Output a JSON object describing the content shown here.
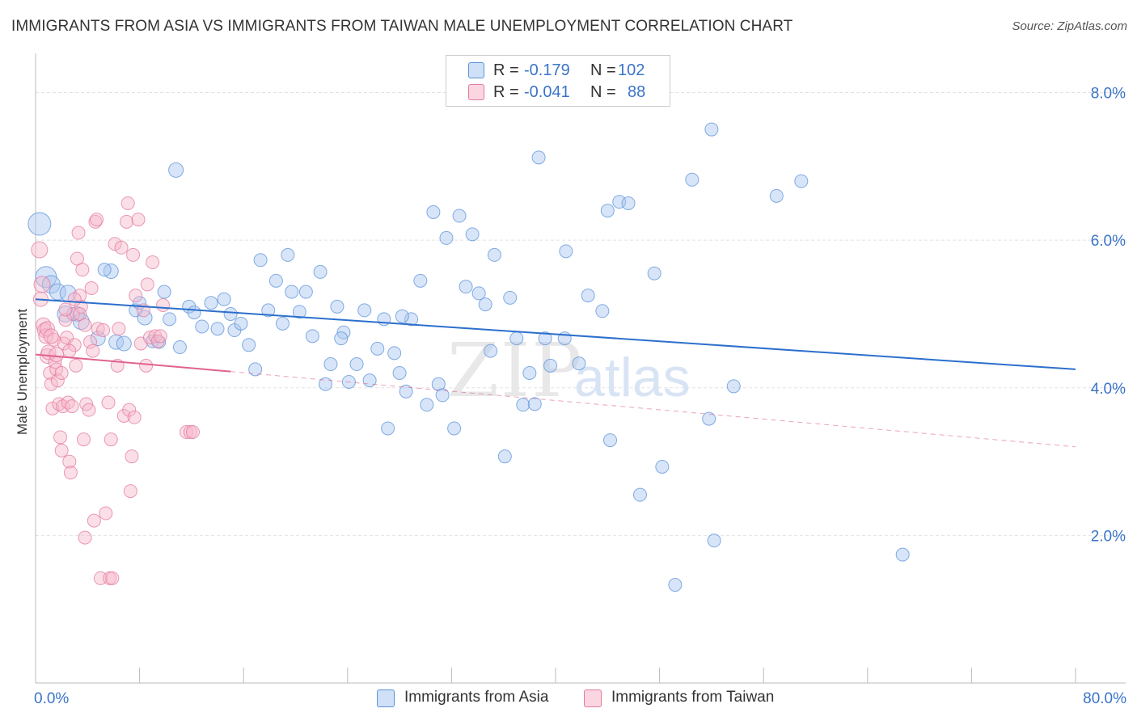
{
  "title": "IMMIGRANTS FROM ASIA VS IMMIGRANTS FROM TAIWAN MALE UNEMPLOYMENT CORRELATION CHART",
  "source": "Source: ZipAtlas.com",
  "watermark": {
    "zip": "ZIP",
    "atlas": "atlas"
  },
  "legend_top": {
    "rows": [
      {
        "r_label": "R =",
        "r_value": "-0.179",
        "n_label": "N =",
        "n_value": "102",
        "color": "#a8c6f0"
      },
      {
        "r_label": "R =",
        "r_value": "-0.041",
        "n_label": "N =",
        "n_value": "88",
        "color": "#f6b8ca"
      }
    ]
  },
  "legend_bottom": [
    {
      "label": "Immigrants from Asia",
      "color": "#a8c6f0"
    },
    {
      "label": "Immigrants from Taiwan",
      "color": "#f6b8ca"
    }
  ],
  "chart_data": {
    "type": "scatter",
    "title": "IMMIGRANTS FROM ASIA VS IMMIGRANTS FROM TAIWAN MALE UNEMPLOYMENT CORRELATION CHART",
    "xlabel": "",
    "ylabel": "Male Unemployment",
    "xlim": [
      0,
      80
    ],
    "ylim": [
      0,
      8.4
    ],
    "x_tick_labels": [
      "0.0%",
      "80.0%"
    ],
    "y_ticks": [
      2,
      4,
      6,
      8
    ],
    "y_tick_labels": [
      "2.0%",
      "4.0%",
      "6.0%",
      "8.0%"
    ],
    "grid": true,
    "legend_placement": "top-center and bottom",
    "series": [
      {
        "name": "Immigrants from Asia",
        "color": "#5b93d9",
        "fill": "#a8c6f0",
        "trend": {
          "x": [
            0,
            80
          ],
          "y": [
            5.2,
            4.25
          ],
          "style": "solid",
          "color": "#2c6fcc"
        },
        "points": [
          [
            0.3,
            6.22,
            14
          ],
          [
            0.8,
            5.5,
            13
          ],
          [
            1.2,
            5.4,
            11
          ],
          [
            1.7,
            5.3,
            10
          ],
          [
            2.5,
            5.28,
            10
          ],
          [
            2.3,
            5.0,
            10
          ],
          [
            3.2,
            5.0,
            9
          ],
          [
            3.5,
            4.9,
            10
          ],
          [
            4.8,
            4.67,
            9
          ],
          [
            5.8,
            5.58,
            9
          ],
          [
            5.3,
            5.6,
            8
          ],
          [
            6.2,
            4.62,
            9
          ],
          [
            6.8,
            4.6,
            9
          ],
          [
            7.7,
            5.05,
            8
          ],
          [
            8.0,
            5.15,
            8
          ],
          [
            8.4,
            4.95,
            9
          ],
          [
            9.0,
            4.63,
            8
          ],
          [
            9.5,
            4.62,
            8
          ],
          [
            9.9,
            5.3,
            8
          ],
          [
            10.3,
            4.93,
            8
          ],
          [
            11.1,
            4.55,
            8
          ],
          [
            10.8,
            6.95,
            9
          ],
          [
            11.8,
            5.1,
            8
          ],
          [
            12.2,
            5.02,
            8
          ],
          [
            12.8,
            4.83,
            8
          ],
          [
            13.5,
            5.15,
            8
          ],
          [
            14.0,
            4.8,
            8
          ],
          [
            14.5,
            5.2,
            8
          ],
          [
            15.0,
            5.0,
            8
          ],
          [
            15.3,
            4.78,
            8
          ],
          [
            15.8,
            4.87,
            8
          ],
          [
            16.4,
            4.58,
            8
          ],
          [
            16.9,
            4.25,
            8
          ],
          [
            17.3,
            5.73,
            8
          ],
          [
            17.9,
            5.05,
            8
          ],
          [
            18.5,
            5.45,
            8
          ],
          [
            19.0,
            4.87,
            8
          ],
          [
            19.4,
            5.8,
            8
          ],
          [
            19.7,
            5.3,
            8
          ],
          [
            20.3,
            5.03,
            8
          ],
          [
            20.8,
            5.3,
            8
          ],
          [
            21.3,
            4.7,
            8
          ],
          [
            21.9,
            5.57,
            8
          ],
          [
            22.3,
            4.05,
            8
          ],
          [
            22.7,
            4.32,
            8
          ],
          [
            23.2,
            5.1,
            8
          ],
          [
            23.7,
            4.75,
            8
          ],
          [
            24.1,
            4.08,
            8
          ],
          [
            24.7,
            4.32,
            8
          ],
          [
            25.3,
            5.05,
            8
          ],
          [
            25.7,
            4.1,
            8
          ],
          [
            26.3,
            4.53,
            8
          ],
          [
            26.8,
            4.93,
            8
          ],
          [
            27.1,
            3.45,
            8
          ],
          [
            27.6,
            4.47,
            8
          ],
          [
            28.0,
            4.2,
            8
          ],
          [
            28.5,
            3.95,
            8
          ],
          [
            28.9,
            4.93,
            8
          ],
          [
            29.6,
            5.45,
            8
          ],
          [
            30.1,
            3.77,
            8
          ],
          [
            30.6,
            6.38,
            8
          ],
          [
            31.0,
            4.05,
            8
          ],
          [
            31.3,
            3.9,
            8
          ],
          [
            31.6,
            6.03,
            8
          ],
          [
            32.2,
            3.45,
            8
          ],
          [
            32.6,
            6.33,
            8
          ],
          [
            33.1,
            5.37,
            8
          ],
          [
            33.6,
            6.08,
            8
          ],
          [
            34.1,
            5.28,
            8
          ],
          [
            34.6,
            5.13,
            8
          ],
          [
            35.0,
            4.5,
            8
          ],
          [
            35.3,
            5.8,
            8
          ],
          [
            36.1,
            3.07,
            8
          ],
          [
            36.5,
            5.22,
            8
          ],
          [
            37.0,
            4.67,
            8
          ],
          [
            37.5,
            3.77,
            8
          ],
          [
            38.0,
            4.2,
            8
          ],
          [
            38.7,
            7.12,
            8
          ],
          [
            39.2,
            4.67,
            8
          ],
          [
            39.6,
            4.3,
            8
          ],
          [
            40.8,
            5.85,
            8
          ],
          [
            41.8,
            4.33,
            8
          ],
          [
            42.5,
            5.25,
            8
          ],
          [
            43.6,
            5.04,
            8
          ],
          [
            44.0,
            6.4,
            8
          ],
          [
            44.2,
            3.29,
            8
          ],
          [
            44.9,
            6.52,
            8
          ],
          [
            45.6,
            6.5,
            8
          ],
          [
            46.5,
            2.55,
            8
          ],
          [
            47.6,
            5.55,
            8
          ],
          [
            48.2,
            2.93,
            8
          ],
          [
            49.2,
            1.33,
            8
          ],
          [
            50.5,
            6.82,
            8
          ],
          [
            51.8,
            3.58,
            8
          ],
          [
            52.0,
            7.5,
            8
          ],
          [
            52.2,
            1.93,
            8
          ],
          [
            53.7,
            4.02,
            8
          ],
          [
            57.0,
            6.6,
            8
          ],
          [
            58.9,
            6.8,
            8
          ],
          [
            66.7,
            1.74,
            8
          ],
          [
            40.7,
            4.67,
            8
          ],
          [
            28.2,
            4.97,
            8
          ],
          [
            23.5,
            4.67,
            8
          ],
          [
            38.4,
            3.78,
            8
          ]
        ]
      },
      {
        "name": "Immigrants from Taiwan",
        "color": "#e27aa0",
        "fill": "#f6b8ca",
        "trend": {
          "x": [
            0,
            15
          ],
          "y": [
            4.45,
            4.22
          ],
          "style": "solid",
          "x_dashed_to": 80,
          "y_dashed_to": 3.2,
          "color": "#e0628f"
        },
        "points": [
          [
            0.3,
            5.87,
            10
          ],
          [
            0.4,
            5.2,
            9
          ],
          [
            0.6,
            4.85,
            9
          ],
          [
            0.7,
            4.78,
            9
          ],
          [
            0.8,
            4.7,
            9
          ],
          [
            0.9,
            4.43,
            9
          ],
          [
            1.0,
            4.48,
            9
          ],
          [
            1.1,
            4.2,
            8
          ],
          [
            1.2,
            4.05,
            8
          ],
          [
            1.3,
            3.72,
            8
          ],
          [
            1.4,
            4.65,
            8
          ],
          [
            1.5,
            4.35,
            8
          ],
          [
            1.6,
            4.25,
            8
          ],
          [
            1.7,
            4.1,
            8
          ],
          [
            1.8,
            3.78,
            8
          ],
          [
            1.9,
            3.33,
            8
          ],
          [
            2.0,
            3.15,
            8
          ],
          [
            2.1,
            3.75,
            8
          ],
          [
            2.2,
            4.6,
            8
          ],
          [
            2.3,
            4.92,
            8
          ],
          [
            2.4,
            4.68,
            8
          ],
          [
            2.5,
            3.8,
            8
          ],
          [
            2.6,
            3.0,
            8
          ],
          [
            2.7,
            2.85,
            8
          ],
          [
            2.8,
            3.75,
            8
          ],
          [
            2.9,
            5.0,
            8
          ],
          [
            3.0,
            4.58,
            8
          ],
          [
            3.1,
            4.3,
            8
          ],
          [
            3.2,
            5.75,
            8
          ],
          [
            3.3,
            6.1,
            8
          ],
          [
            3.4,
            5.25,
            8
          ],
          [
            3.5,
            5.1,
            8
          ],
          [
            3.6,
            5.6,
            8
          ],
          [
            3.7,
            3.3,
            8
          ],
          [
            3.8,
            1.97,
            8
          ],
          [
            3.9,
            3.78,
            8
          ],
          [
            4.1,
            3.7,
            8
          ],
          [
            4.2,
            4.62,
            8
          ],
          [
            4.3,
            5.35,
            8
          ],
          [
            4.4,
            4.5,
            8
          ],
          [
            4.5,
            2.2,
            8
          ],
          [
            4.6,
            6.25,
            8
          ],
          [
            4.7,
            6.28,
            8
          ],
          [
            4.8,
            4.8,
            8
          ],
          [
            5.0,
            1.42,
            8
          ],
          [
            5.2,
            4.78,
            8
          ],
          [
            5.4,
            2.3,
            8
          ],
          [
            5.6,
            3.8,
            8
          ],
          [
            5.7,
            1.42,
            8
          ],
          [
            5.8,
            3.3,
            8
          ],
          [
            5.9,
            1.42,
            8
          ],
          [
            6.1,
            5.95,
            8
          ],
          [
            6.3,
            4.3,
            8
          ],
          [
            6.4,
            4.8,
            8
          ],
          [
            6.6,
            5.9,
            8
          ],
          [
            6.8,
            3.62,
            8
          ],
          [
            7.0,
            6.25,
            8
          ],
          [
            7.1,
            6.5,
            8
          ],
          [
            7.2,
            3.7,
            8
          ],
          [
            7.3,
            2.6,
            8
          ],
          [
            7.4,
            3.07,
            8
          ],
          [
            7.5,
            5.8,
            8
          ],
          [
            7.6,
            3.6,
            8
          ],
          [
            7.7,
            5.25,
            8
          ],
          [
            7.9,
            6.28,
            8
          ],
          [
            8.1,
            4.6,
            8
          ],
          [
            8.3,
            5.05,
            8
          ],
          [
            8.5,
            4.3,
            8
          ],
          [
            8.6,
            5.4,
            8
          ],
          [
            8.8,
            4.68,
            8
          ],
          [
            9.0,
            5.7,
            8
          ],
          [
            9.2,
            4.7,
            8
          ],
          [
            9.4,
            4.63,
            8
          ],
          [
            9.6,
            4.7,
            8
          ],
          [
            9.8,
            5.12,
            8
          ],
          [
            11.6,
            3.4,
            8
          ],
          [
            11.9,
            3.4,
            8
          ],
          [
            12.1,
            3.4,
            8
          ],
          [
            0.5,
            5.4,
            10
          ],
          [
            0.9,
            4.8,
            9
          ],
          [
            1.2,
            4.7,
            9
          ],
          [
            1.6,
            4.45,
            9
          ],
          [
            2.0,
            4.2,
            8
          ],
          [
            2.3,
            5.06,
            8
          ],
          [
            2.6,
            4.5,
            8
          ],
          [
            3.0,
            5.2,
            8
          ],
          [
            3.4,
            5.0,
            8
          ],
          [
            3.8,
            4.85,
            8
          ]
        ]
      }
    ]
  }
}
